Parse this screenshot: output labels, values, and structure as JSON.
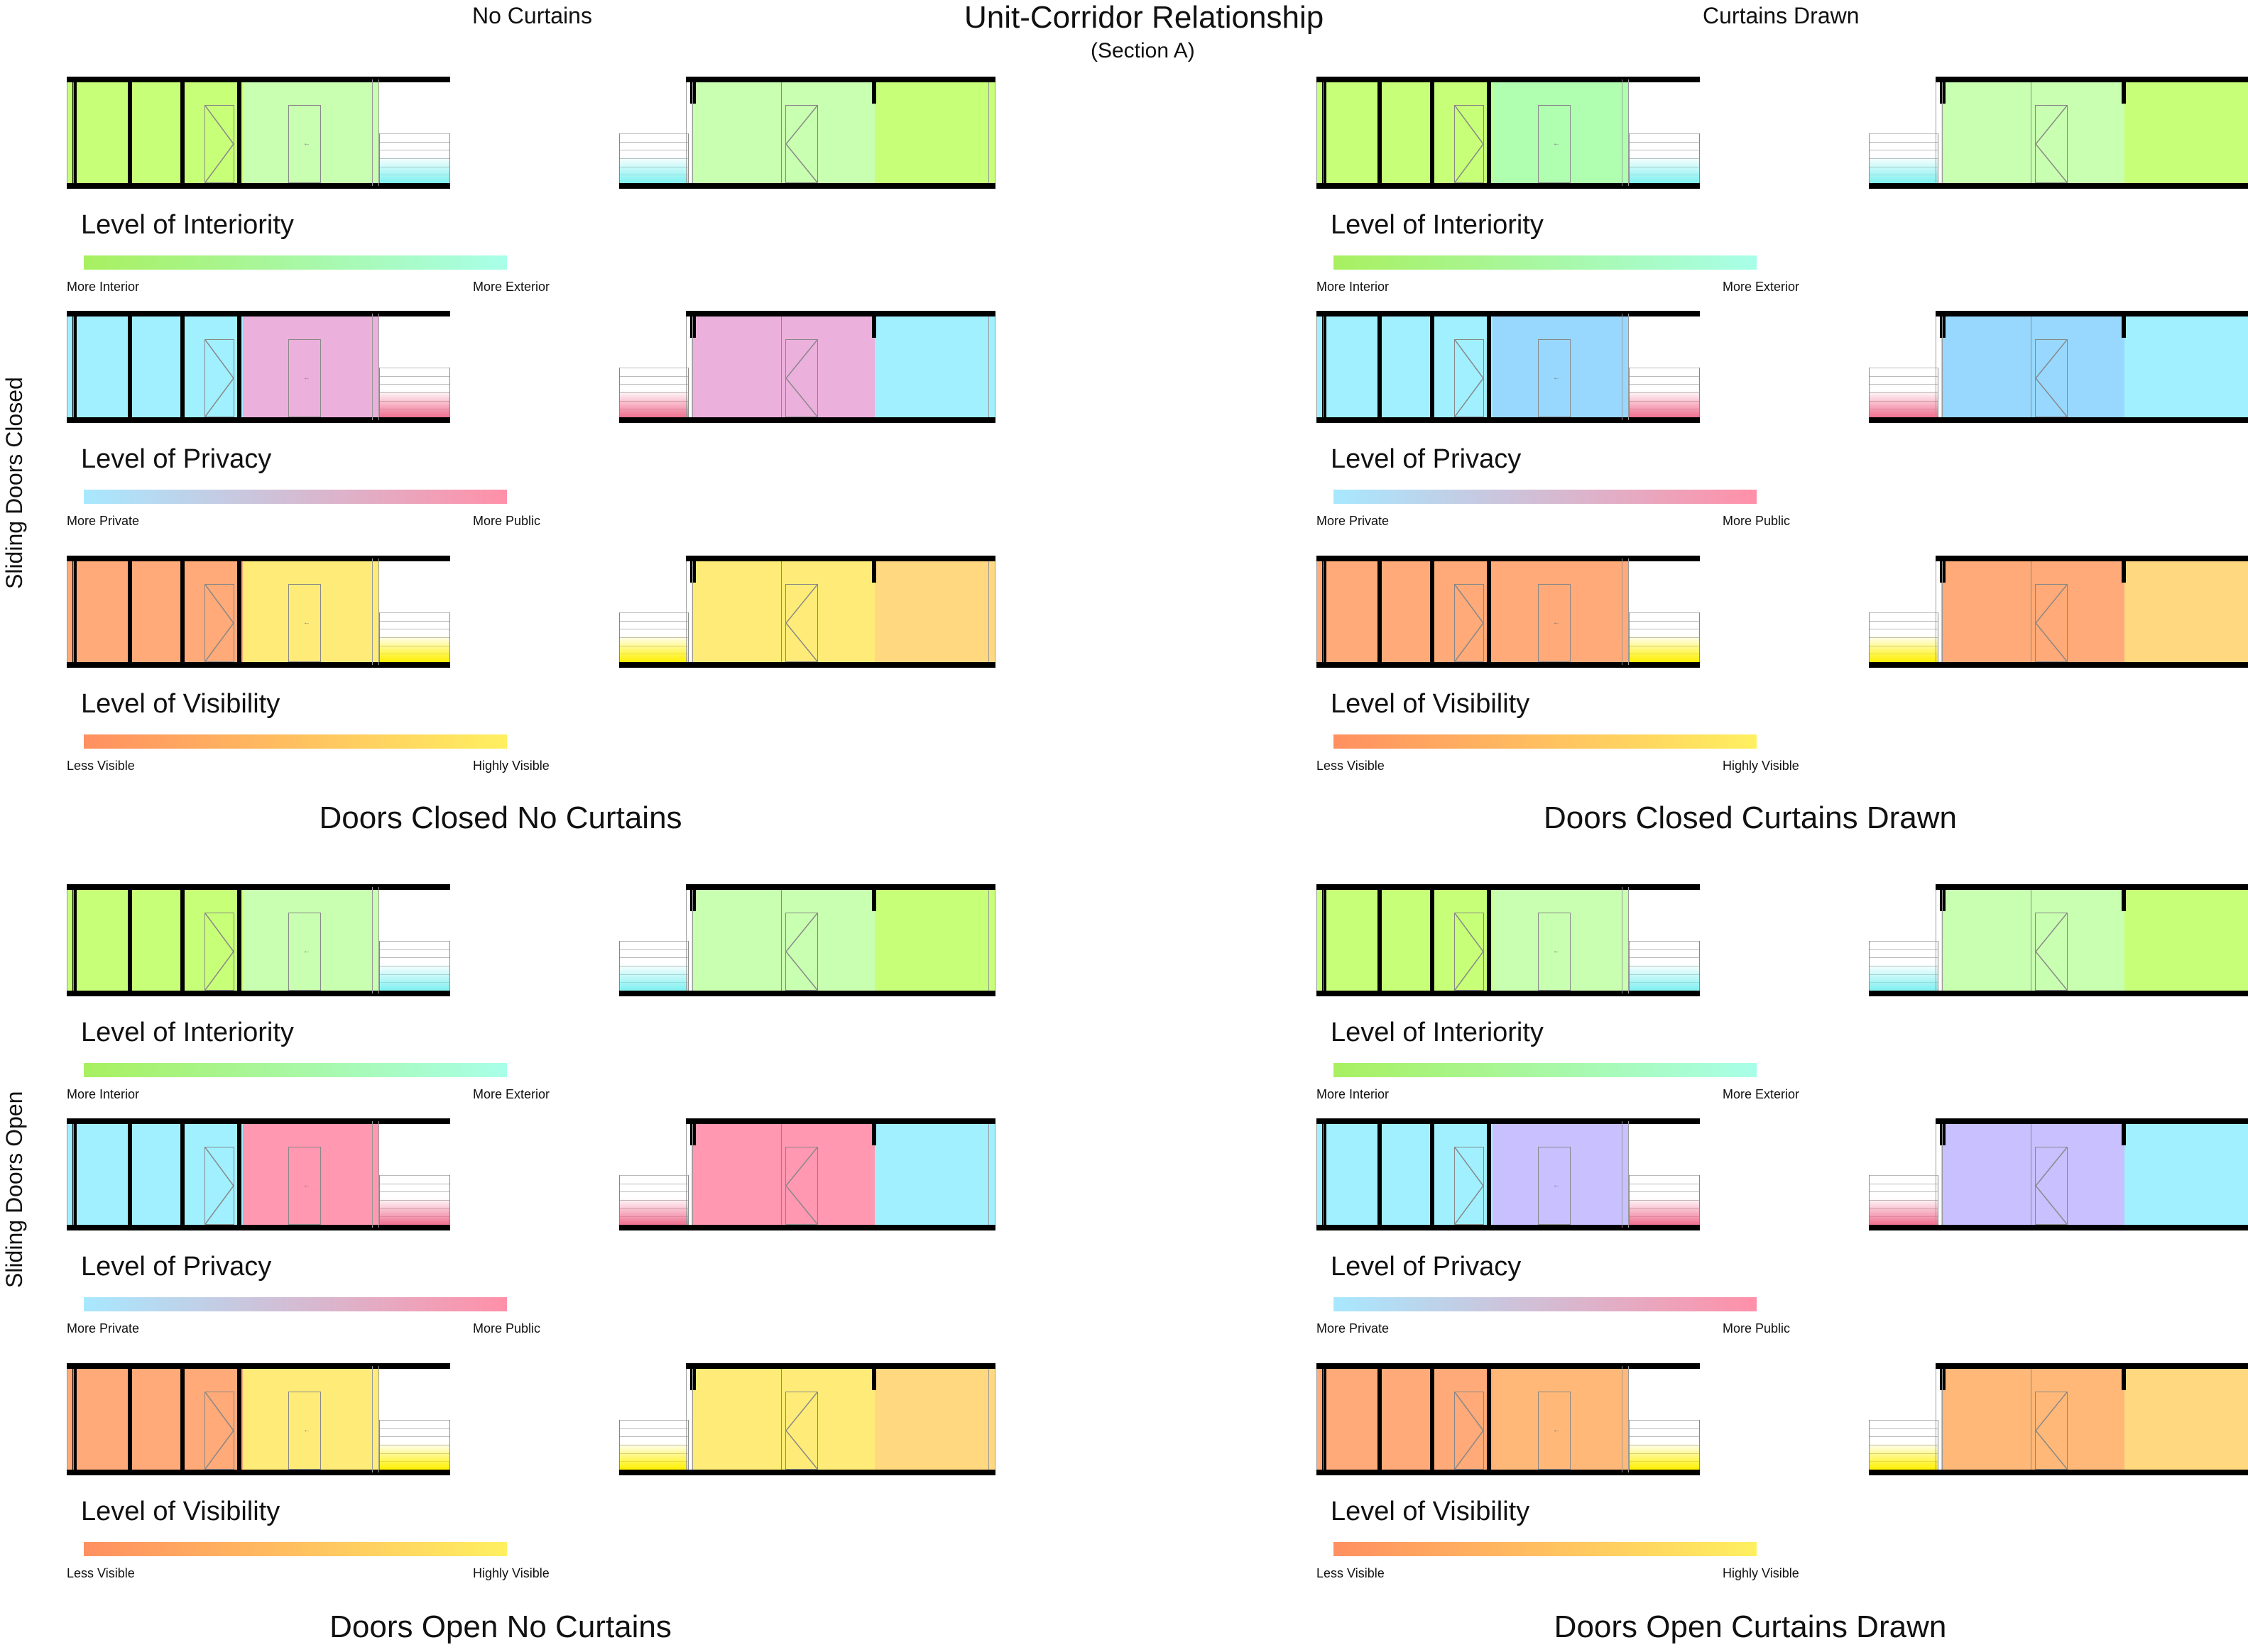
{
  "header": {
    "title": "Unit-Corridor Relationship",
    "subtitle": "(Section A)",
    "col_left": "No Curtains",
    "col_right": "Curtains Drawn"
  },
  "side_labels": {
    "top": "Sliding Doors Closed",
    "bottom": "Sliding Doors Open"
  },
  "legend_metrics": {
    "interiority": {
      "title": "Level of Interiority",
      "low": "More Interior",
      "high": "More Exterior",
      "gradient": [
        "#a8f060",
        "#a8ffe8"
      ]
    },
    "privacy": {
      "title": "Level of Privacy",
      "low": "More Private",
      "high": "More Public",
      "gradient": [
        "#a8e8ff",
        "#ff90a8"
      ]
    },
    "visibility": {
      "title": "Level of Visibility",
      "low": "Less Visible",
      "high": "Highly Visible",
      "gradient": [
        "#ff9060",
        "#fff060"
      ]
    }
  },
  "quadrants": {
    "tl": {
      "caption": "Doors Closed No Curtains",
      "rows": [
        {
          "a_left": "#c8ff78",
          "a_door": "#c8ffb0",
          "b_mid": "#c8ffb0",
          "b_right": "#c8ff78",
          "rail": "#80f0f0"
        },
        {
          "a_left": "#a0f0ff",
          "a_door": "#ecb0dc",
          "b_mid": "#ecb0dc",
          "b_right": "#a0f0ff",
          "rail": "#f07090"
        },
        {
          "a_left": "#ffaa78",
          "a_door": "#ffec78",
          "b_mid": "#ffec78",
          "b_right": "#ffd880",
          "rail": "#fff000"
        }
      ]
    },
    "tr": {
      "caption": "Doors Closed Curtains Drawn",
      "rows": [
        {
          "a_left": "#c8ff78",
          "a_door": "#b0ffb0",
          "b_mid": "#c8ffb0",
          "b_right": "#c8ff78",
          "rail": "#80f0f0"
        },
        {
          "a_left": "#a0f0ff",
          "a_door": "#98d8ff",
          "b_mid": "#98d8ff",
          "b_right": "#a0f0ff",
          "rail": "#f07090"
        },
        {
          "a_left": "#ffaa78",
          "a_door": "#ffaa78",
          "b_mid": "#ffaa78",
          "b_right": "#ffd880",
          "rail": "#fff000"
        }
      ]
    },
    "bl": {
      "caption": "Doors Open No Curtains",
      "rows": [
        {
          "a_left": "#c8ff78",
          "a_door": "#c8ffb0",
          "b_mid": "#c8ffb0",
          "b_right": "#c8ff78",
          "rail": "#80f0f0"
        },
        {
          "a_left": "#a0f0ff",
          "a_door": "#ff98b0",
          "b_mid": "#ff98b0",
          "b_right": "#a0f0ff",
          "rail": "#f07090"
        },
        {
          "a_left": "#ffaa78",
          "a_door": "#ffec78",
          "b_mid": "#ffec78",
          "b_right": "#ffd880",
          "rail": "#fff000"
        }
      ]
    },
    "br": {
      "caption": "Doors Open Curtains Drawn",
      "rows": [
        {
          "a_left": "#c8ff78",
          "a_door": "#c8ffb0",
          "b_mid": "#c8ffb0",
          "b_right": "#c8ff78",
          "rail": "#80f0f0"
        },
        {
          "a_left": "#a0f0ff",
          "a_door": "#c8c0ff",
          "b_mid": "#c8c0ff",
          "b_right": "#a0f0ff",
          "rail": "#f07090"
        },
        {
          "a_left": "#ffaa78",
          "a_door": "#ffb878",
          "b_mid": "#ffb878",
          "b_right": "#ffd880",
          "rail": "#fff000"
        }
      ]
    }
  }
}
